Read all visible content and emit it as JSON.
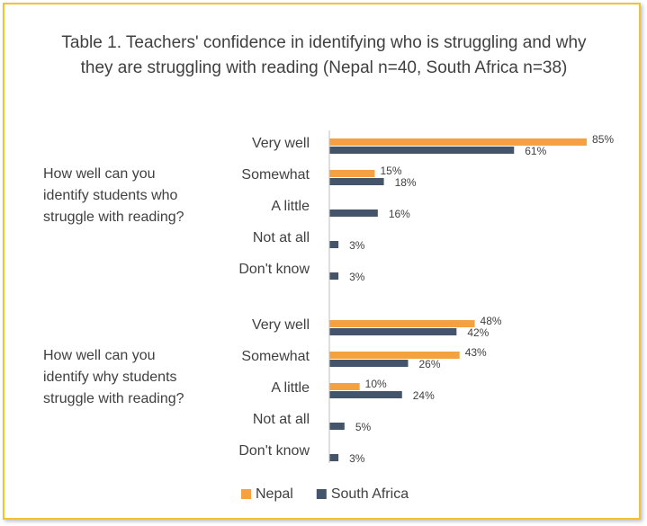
{
  "chart_data": {
    "type": "grouped-hbar",
    "title": "Table 1. Teachers' confidence in identifying who is struggling and why they are struggling with reading (Nepal n=40, South Africa n=38)",
    "series": [
      {
        "name": "Nepal",
        "color": "#f5a142"
      },
      {
        "name": "South Africa",
        "color": "#44546a"
      }
    ],
    "xlim": [
      0,
      100
    ],
    "groups": [
      {
        "label": "How well can you identify students who struggle with reading?",
        "categories": [
          "Very well",
          "Somewhat",
          "A little",
          "Not at all",
          "Don't know"
        ],
        "series": [
          {
            "values": [
              85,
              15,
              null,
              null,
              null
            ],
            "value_labels": [
              "85%",
              "15%",
              null,
              null,
              null
            ]
          },
          {
            "values": [
              61,
              18,
              16,
              3,
              3
            ],
            "value_labels": [
              "61%",
              "18%",
              "16%",
              "3%",
              "3%"
            ]
          }
        ]
      },
      {
        "label": "How well can you identify why students struggle with reading?",
        "categories": [
          "Very well",
          "Somewhat",
          "A little",
          "Not at all",
          "Don't know"
        ],
        "series": [
          {
            "values": [
              48,
              43,
              10,
              null,
              null
            ],
            "value_labels": [
              "48%",
              "43%",
              "10%",
              null,
              null
            ]
          },
          {
            "values": [
              42,
              26,
              24,
              5,
              3
            ],
            "value_labels": [
              "42%",
              "26%",
              "24%",
              "5%",
              "3%"
            ]
          }
        ]
      }
    ]
  }
}
